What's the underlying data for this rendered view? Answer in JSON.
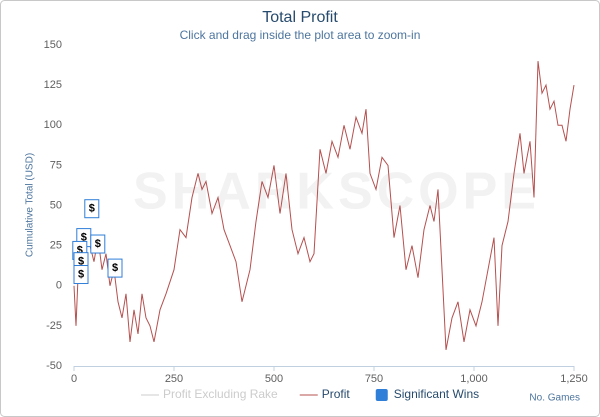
{
  "chart_data": {
    "type": "line",
    "title": "Total Profit",
    "subtitle": "Click and drag inside the plot area to zoom-in",
    "watermark": "SHARKSCOPE",
    "y_label": "Cumulative Total (USD)",
    "x_label": "No. Games",
    "xlim": [
      0,
      1250
    ],
    "ylim": [
      -50,
      150
    ],
    "xticks": [
      0,
      250,
      500,
      750,
      {
        "value": 1000,
        "label": "1,000"
      },
      {
        "value": 1250,
        "label": "1,250"
      }
    ],
    "yticks": [
      -50,
      -25,
      0,
      25,
      50,
      75,
      100,
      125,
      150
    ],
    "grid": false,
    "series": [
      {
        "name": "Profit Excluding Rake",
        "color": "#cccccc",
        "visible": false
      },
      {
        "name": "Profit",
        "color": "#b5504f",
        "visible": true,
        "x": [
          0,
          5,
          10,
          20,
          30,
          40,
          50,
          60,
          70,
          80,
          90,
          100,
          110,
          120,
          130,
          140,
          150,
          160,
          170,
          180,
          190,
          200,
          215,
          230,
          250,
          265,
          280,
          295,
          310,
          320,
          330,
          345,
          360,
          375,
          390,
          405,
          420,
          430,
          440,
          455,
          470,
          485,
          500,
          515,
          530,
          545,
          560,
          575,
          590,
          600,
          615,
          630,
          645,
          660,
          675,
          690,
          705,
          720,
          730,
          740,
          755,
          770,
          785,
          800,
          815,
          830,
          845,
          860,
          875,
          890,
          900,
          910,
          920,
          930,
          945,
          960,
          975,
          990,
          1005,
          1020,
          1035,
          1050,
          1060,
          1070,
          1085,
          1100,
          1115,
          1125,
          1140,
          1150,
          1160,
          1170,
          1180,
          1190,
          1200,
          1210,
          1220,
          1230,
          1240,
          1250
        ],
        "values": [
          0,
          -25,
          5,
          20,
          35,
          25,
          15,
          30,
          10,
          20,
          0,
          10,
          -10,
          -20,
          -5,
          -35,
          -15,
          -30,
          -5,
          -20,
          -25,
          -35,
          -15,
          -5,
          10,
          35,
          30,
          55,
          70,
          60,
          65,
          45,
          55,
          35,
          25,
          15,
          -10,
          0,
          10,
          40,
          65,
          55,
          75,
          45,
          70,
          35,
          20,
          30,
          15,
          20,
          85,
          70,
          90,
          80,
          100,
          85,
          105,
          95,
          110,
          70,
          60,
          80,
          75,
          30,
          50,
          10,
          25,
          5,
          35,
          50,
          40,
          60,
          10,
          -40,
          -20,
          -10,
          -35,
          -15,
          -25,
          -10,
          10,
          30,
          -25,
          25,
          40,
          70,
          95,
          70,
          90,
          55,
          140,
          120,
          125,
          110,
          115,
          100,
          100,
          90,
          110,
          125
        ]
      },
      {
        "name": "Significant Wins",
        "color": "#2f7ed8",
        "visible": true,
        "marker_text": "$",
        "x": [
          42,
          22,
          12,
          15,
          15,
          57,
          100
        ],
        "values": [
          48,
          30,
          22,
          15,
          7,
          26,
          11
        ]
      }
    ]
  }
}
